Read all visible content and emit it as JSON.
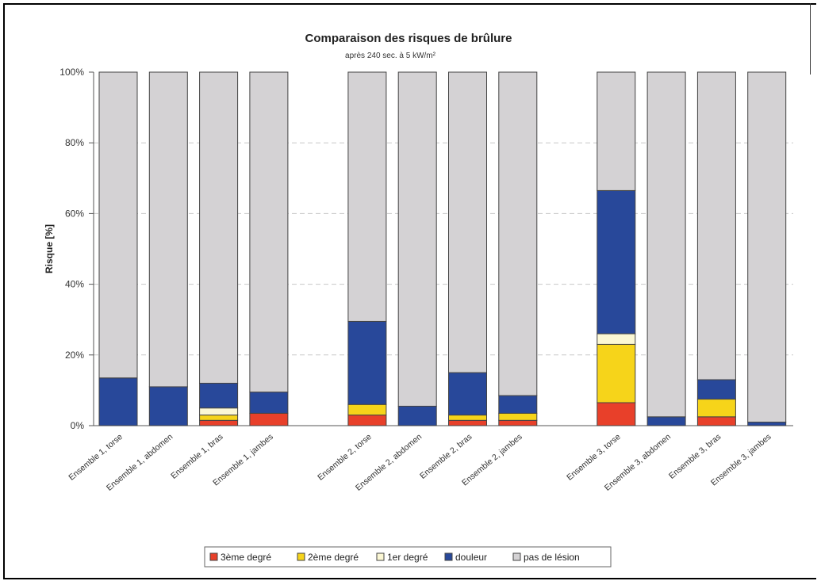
{
  "chart_data": {
    "type": "bar",
    "stacked": true,
    "title": "Comparaison des risques de brûlure",
    "subtitle": "après 240 sec. à 5 kW/m²",
    "ylabel": "Risque [%]",
    "xlabel": "",
    "ylim": [
      0,
      100
    ],
    "yticks": [
      "0%",
      "20%",
      "40%",
      "60%",
      "80%",
      "100%"
    ],
    "grid": "horizontal-dashed",
    "legend_position": "bottom",
    "categories": [
      "Ensemble 1, torse",
      "Ensemble 1, abdomen",
      "Ensemble 1, bras",
      "Ensemble 1, jambes",
      "Ensemble 2, torse",
      "Ensemble 2, abdomen",
      "Ensemble 2, bras",
      "Ensemble 2, jambes",
      "Ensemble 3, torse",
      "Ensemble 3, abdomen",
      "Ensemble 3, bras",
      "Ensemble 3, jambes"
    ],
    "groups": [
      [
        "Ensemble 1, torse",
        "Ensemble 1, abdomen",
        "Ensemble 1, bras",
        "Ensemble 1, jambes"
      ],
      [
        "Ensemble 2, torse",
        "Ensemble 2, abdomen",
        "Ensemble 2, bras",
        "Ensemble 2, jambes"
      ],
      [
        "Ensemble 3, torse",
        "Ensemble 3, abdomen",
        "Ensemble 3, bras",
        "Ensemble 3, jambes"
      ]
    ],
    "series": [
      {
        "name": "3ème degré",
        "color": "#e8402a",
        "values": [
          0,
          0,
          1.5,
          3.5,
          3,
          0,
          1.5,
          1.5,
          6.5,
          0,
          2.5,
          0
        ]
      },
      {
        "name": "2ème degré",
        "color": "#f6d41a",
        "values": [
          0,
          0,
          1.5,
          0,
          3,
          0,
          1.5,
          2,
          16.5,
          0,
          5,
          0
        ]
      },
      {
        "name": "1er degré",
        "color": "#fbf7d4",
        "values": [
          0,
          0,
          2,
          0,
          0,
          0,
          0,
          0,
          3,
          0,
          0,
          0
        ]
      },
      {
        "name": "douleur",
        "color": "#28489a",
        "values": [
          13.5,
          11,
          7,
          6,
          23.5,
          5.5,
          12,
          5,
          40.5,
          2.5,
          5.5,
          1
        ]
      },
      {
        "name": "pas de lésion",
        "color": "#d4d2d4",
        "values": [
          86.5,
          89,
          88,
          90.5,
          70.5,
          94.5,
          85,
          91.5,
          33.5,
          97.5,
          87,
          99
        ]
      }
    ]
  }
}
